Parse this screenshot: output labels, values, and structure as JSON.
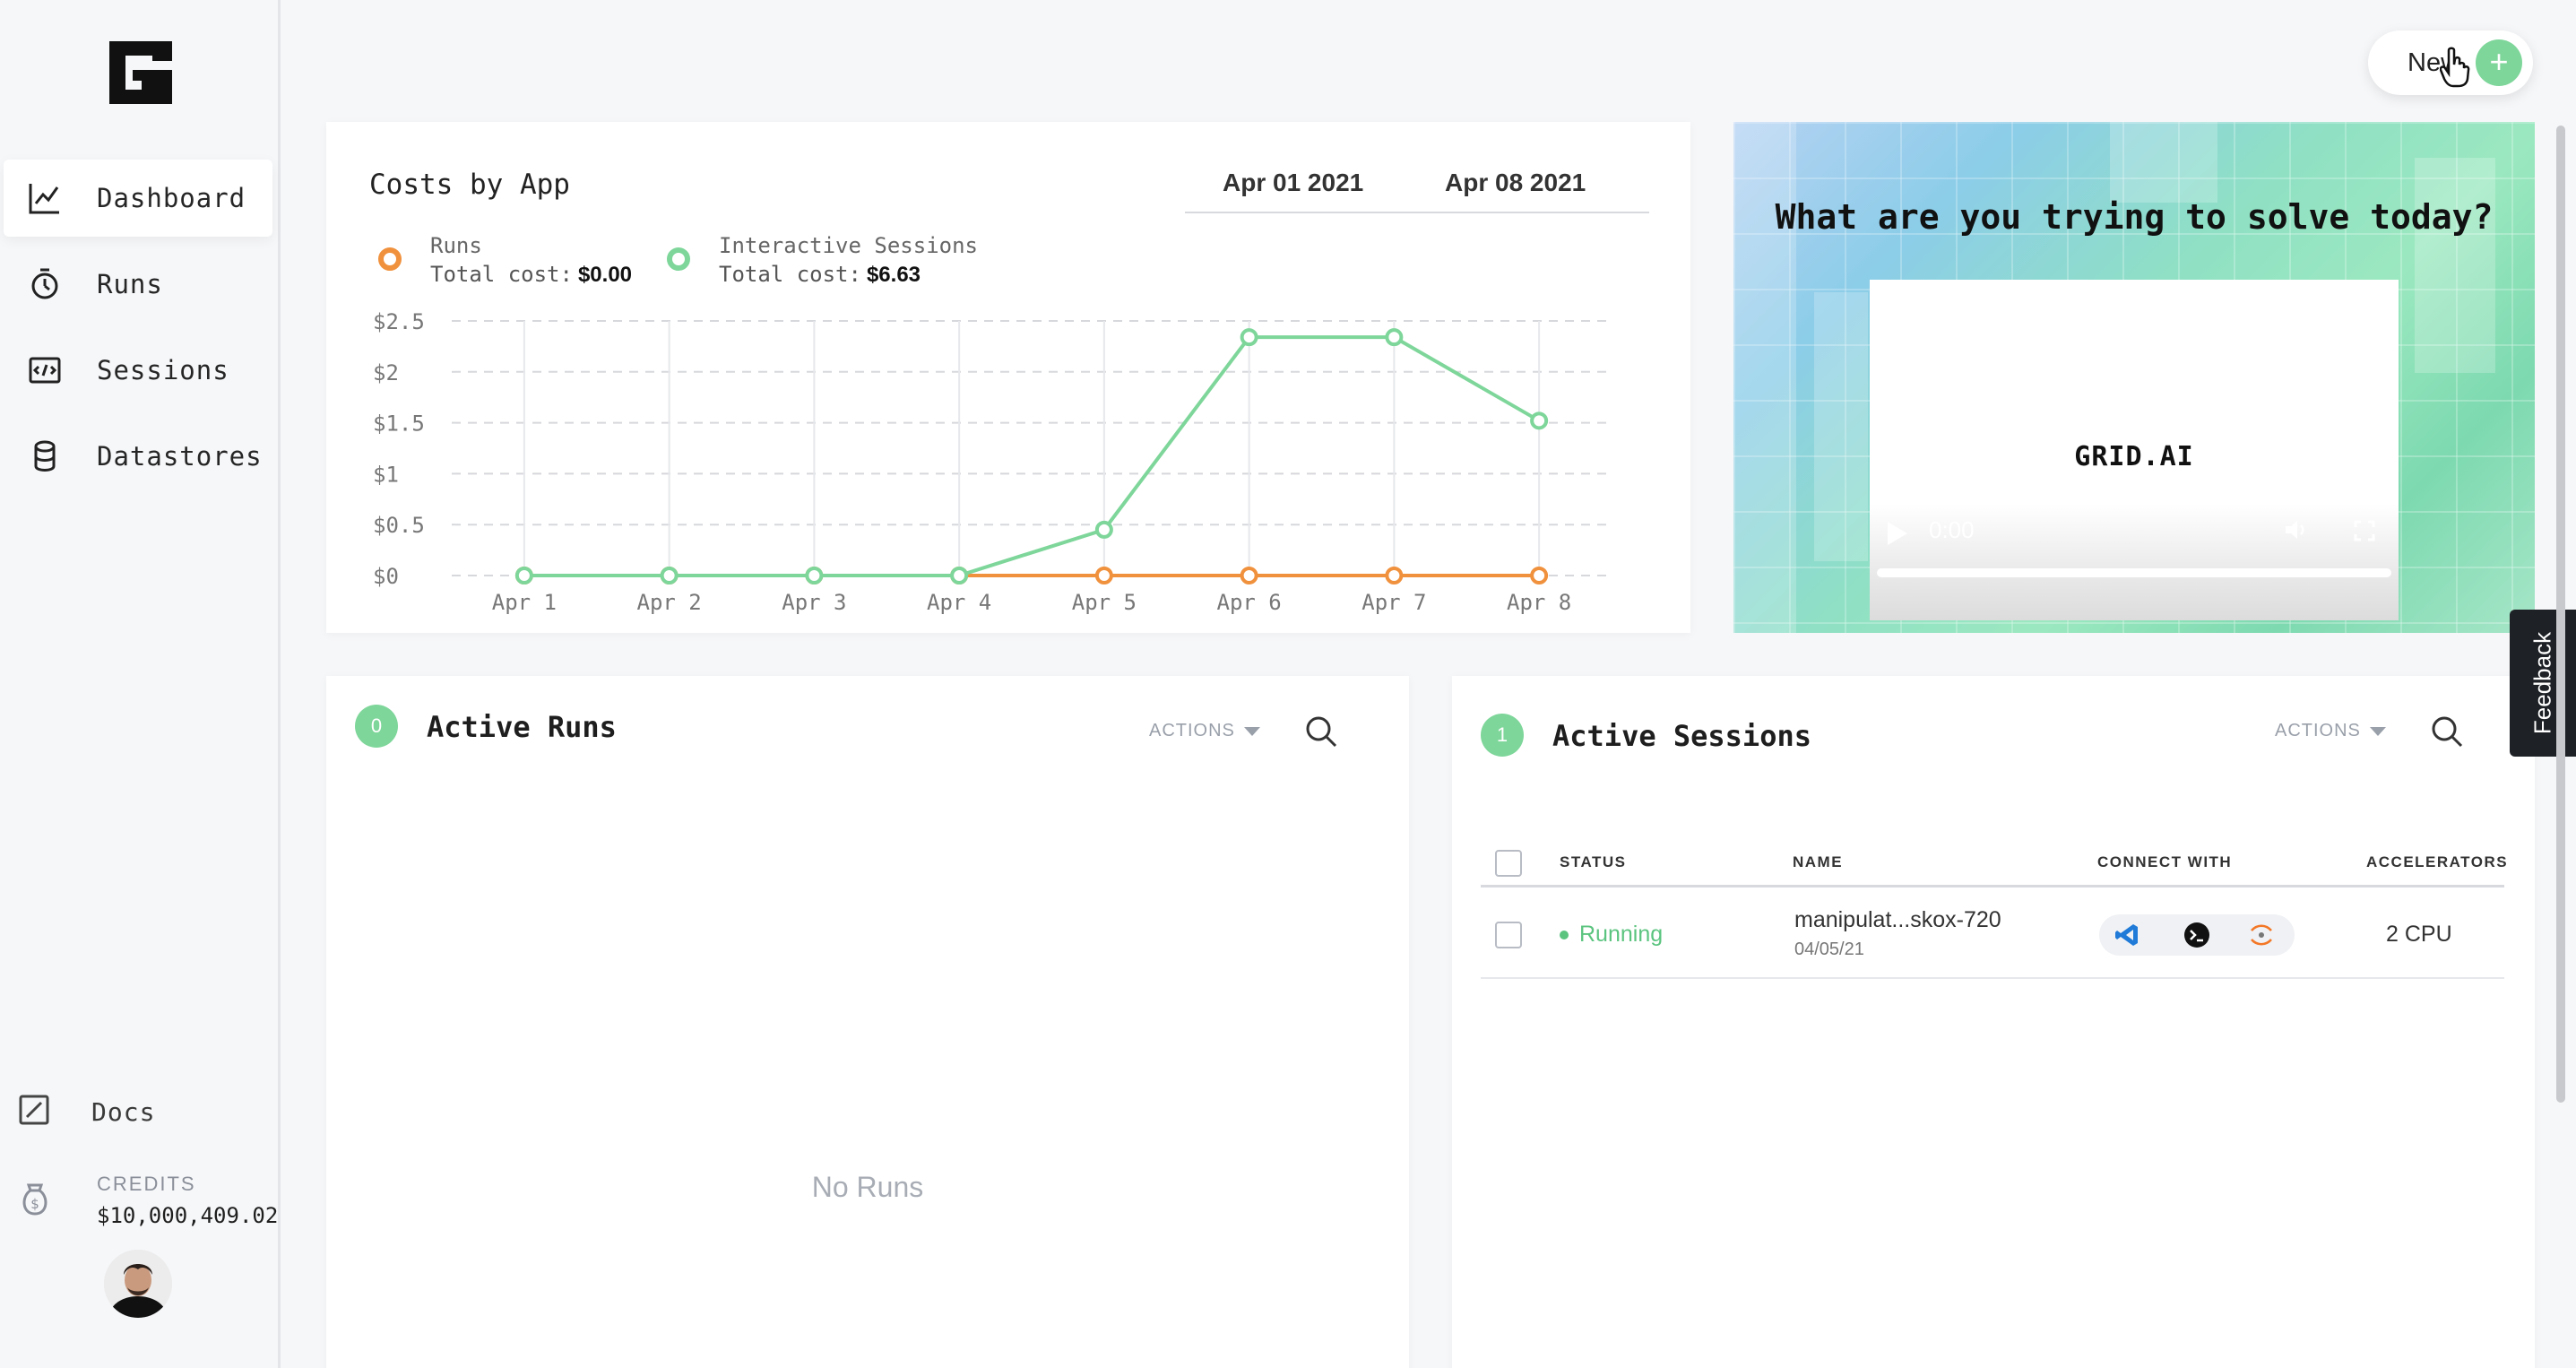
{
  "sidebar": {
    "items": [
      {
        "label": "Dashboard",
        "icon": "chart-line-icon"
      },
      {
        "label": "Runs",
        "icon": "stopwatch-icon"
      },
      {
        "label": "Sessions",
        "icon": "code-window-icon"
      },
      {
        "label": "Datastores",
        "icon": "database-icon"
      }
    ],
    "docs": "Docs",
    "credits_label": "CREDITS",
    "credits_value": "$10,000,409.02"
  },
  "new_button": "New",
  "costs": {
    "title": "Costs by App",
    "date_from": "Apr 01 2021",
    "date_to": "Apr 08 2021",
    "total_label": "Total cost:",
    "legend": [
      {
        "name": "Runs",
        "cost": "$0.00",
        "color": "#f0913d"
      },
      {
        "name": "Interactive Sessions",
        "cost": "$6.63",
        "color": "#7ed69a"
      }
    ]
  },
  "chart_data": {
    "type": "line",
    "title": "Costs by App",
    "categories": [
      "Apr 1",
      "Apr 2",
      "Apr 3",
      "Apr 4",
      "Apr 5",
      "Apr 6",
      "Apr 7",
      "Apr 8"
    ],
    "y_ticks": [
      "$0",
      "$0.5",
      "$1",
      "$1.5",
      "$2",
      "$2.5"
    ],
    "ylim": [
      0,
      2.5
    ],
    "series": [
      {
        "name": "Runs",
        "color": "#f0913d",
        "values": [
          0,
          0,
          0,
          0,
          0,
          0,
          0,
          0
        ]
      },
      {
        "name": "Interactive Sessions",
        "color": "#7ed69a",
        "values": [
          0,
          0,
          0,
          0,
          0.45,
          2.34,
          2.34,
          1.52
        ]
      }
    ],
    "grid": true
  },
  "promo": {
    "question": "What are you trying to solve today?",
    "brand": "GRID.AI",
    "video_time": "0:00"
  },
  "active_runs": {
    "count": "0",
    "title": "Active Runs",
    "actions": "ACTIONS",
    "empty": "No Runs"
  },
  "active_sessions": {
    "count": "1",
    "title": "Active Sessions",
    "actions": "ACTIONS",
    "columns": [
      "STATUS",
      "NAME",
      "CONNECT WITH",
      "ACCELERATORS"
    ],
    "rows": [
      {
        "status": "Running",
        "name": "manipulat...skox-720",
        "date": "04/05/21",
        "accelerators": "2 CPU"
      }
    ]
  },
  "feedback": "Feedback"
}
